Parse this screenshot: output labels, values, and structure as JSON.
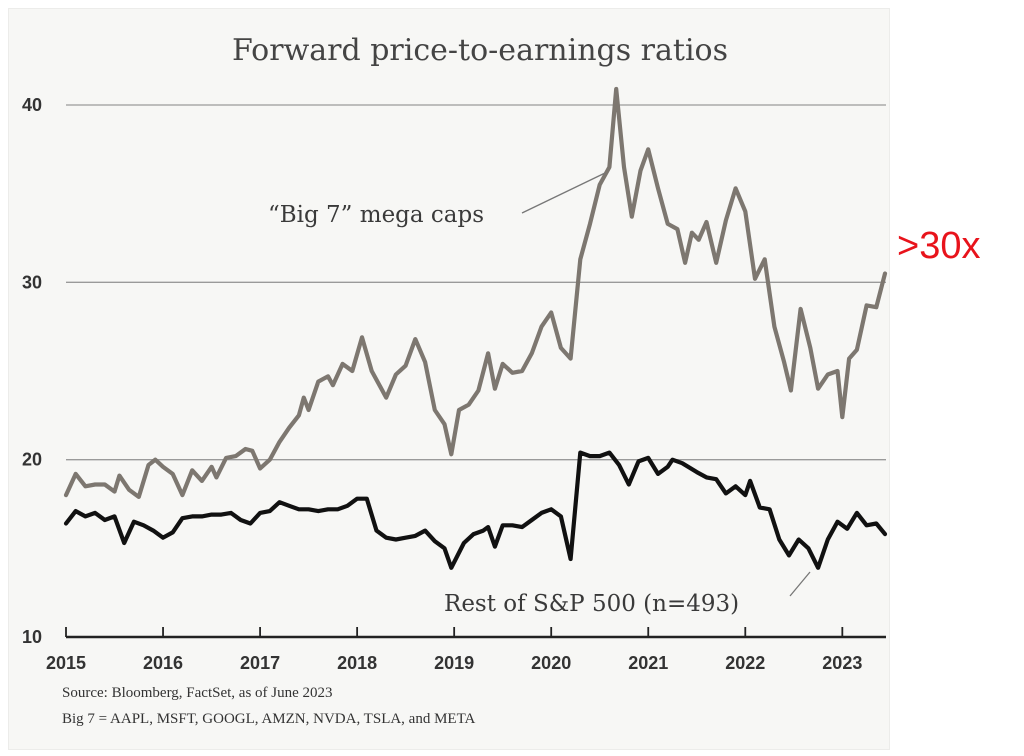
{
  "chart_data": {
    "type": "line",
    "title": "Forward price-to-earnings ratios",
    "xlabel": "",
    "ylabel": "",
    "xlim": [
      2015,
      2023.45
    ],
    "ylim": [
      10,
      40
    ],
    "yticks": [
      10,
      20,
      30,
      40
    ],
    "xticks": [
      "2015",
      "2016",
      "2017",
      "2018",
      "2019",
      "2020",
      "2021",
      "2022",
      "2023"
    ],
    "grid": "horizontal",
    "series": [
      {
        "name": "“Big 7” mega caps",
        "color": "#7d7770",
        "points": [
          [
            2015.0,
            18.0
          ],
          [
            2015.1,
            19.2
          ],
          [
            2015.2,
            18.5
          ],
          [
            2015.3,
            18.6
          ],
          [
            2015.4,
            18.6
          ],
          [
            2015.5,
            18.2
          ],
          [
            2015.55,
            19.1
          ],
          [
            2015.65,
            18.3
          ],
          [
            2015.75,
            17.9
          ],
          [
            2015.85,
            19.7
          ],
          [
            2015.92,
            20.0
          ],
          [
            2016.0,
            19.6
          ],
          [
            2016.1,
            19.2
          ],
          [
            2016.2,
            18.0
          ],
          [
            2016.3,
            19.4
          ],
          [
            2016.4,
            18.8
          ],
          [
            2016.5,
            19.6
          ],
          [
            2016.55,
            19.0
          ],
          [
            2016.65,
            20.1
          ],
          [
            2016.75,
            20.2
          ],
          [
            2016.85,
            20.6
          ],
          [
            2016.92,
            20.5
          ],
          [
            2017.0,
            19.5
          ],
          [
            2017.1,
            20.0
          ],
          [
            2017.2,
            21.0
          ],
          [
            2017.3,
            21.8
          ],
          [
            2017.4,
            22.5
          ],
          [
            2017.45,
            23.5
          ],
          [
            2017.5,
            22.8
          ],
          [
            2017.6,
            24.4
          ],
          [
            2017.7,
            24.7
          ],
          [
            2017.75,
            24.2
          ],
          [
            2017.85,
            25.4
          ],
          [
            2017.95,
            25.0
          ],
          [
            2018.05,
            26.9
          ],
          [
            2018.15,
            25.0
          ],
          [
            2018.3,
            23.5
          ],
          [
            2018.4,
            24.8
          ],
          [
            2018.5,
            25.3
          ],
          [
            2018.6,
            26.8
          ],
          [
            2018.7,
            25.5
          ],
          [
            2018.8,
            22.8
          ],
          [
            2018.9,
            22.0
          ],
          [
            2018.97,
            20.3
          ],
          [
            2019.05,
            22.8
          ],
          [
            2019.15,
            23.1
          ],
          [
            2019.25,
            23.9
          ],
          [
            2019.35,
            26.0
          ],
          [
            2019.42,
            24.0
          ],
          [
            2019.5,
            25.4
          ],
          [
            2019.6,
            24.9
          ],
          [
            2019.7,
            25.0
          ],
          [
            2019.8,
            26.0
          ],
          [
            2019.9,
            27.5
          ],
          [
            2020.0,
            28.3
          ],
          [
            2020.1,
            26.3
          ],
          [
            2020.2,
            25.7
          ],
          [
            2020.3,
            31.3
          ],
          [
            2020.4,
            33.3
          ],
          [
            2020.5,
            35.5
          ],
          [
            2020.6,
            36.5
          ],
          [
            2020.67,
            40.9
          ],
          [
            2020.75,
            36.5
          ],
          [
            2020.83,
            33.7
          ],
          [
            2020.92,
            36.3
          ],
          [
            2021.0,
            37.5
          ],
          [
            2021.1,
            35.3
          ],
          [
            2021.2,
            33.3
          ],
          [
            2021.3,
            33.0
          ],
          [
            2021.38,
            31.1
          ],
          [
            2021.45,
            32.8
          ],
          [
            2021.52,
            32.4
          ],
          [
            2021.6,
            33.4
          ],
          [
            2021.7,
            31.1
          ],
          [
            2021.8,
            33.5
          ],
          [
            2021.9,
            35.3
          ],
          [
            2022.0,
            34.0
          ],
          [
            2022.1,
            30.2
          ],
          [
            2022.2,
            31.3
          ],
          [
            2022.3,
            27.5
          ],
          [
            2022.4,
            25.5
          ],
          [
            2022.47,
            23.9
          ],
          [
            2022.57,
            28.5
          ],
          [
            2022.67,
            26.3
          ],
          [
            2022.75,
            24.0
          ],
          [
            2022.85,
            24.8
          ],
          [
            2022.95,
            25.0
          ],
          [
            2023.0,
            22.4
          ],
          [
            2023.07,
            25.7
          ],
          [
            2023.15,
            26.2
          ],
          [
            2023.25,
            28.7
          ],
          [
            2023.35,
            28.6
          ],
          [
            2023.44,
            30.5
          ]
        ]
      },
      {
        "name": "Rest of S&P 500 (n=493)",
        "color": "#111111",
        "points": [
          [
            2015.0,
            16.4
          ],
          [
            2015.1,
            17.1
          ],
          [
            2015.2,
            16.8
          ],
          [
            2015.3,
            17.0
          ],
          [
            2015.4,
            16.6
          ],
          [
            2015.5,
            16.8
          ],
          [
            2015.6,
            15.3
          ],
          [
            2015.7,
            16.5
          ],
          [
            2015.8,
            16.3
          ],
          [
            2015.9,
            16.0
          ],
          [
            2016.0,
            15.6
          ],
          [
            2016.1,
            15.9
          ],
          [
            2016.2,
            16.7
          ],
          [
            2016.3,
            16.8
          ],
          [
            2016.4,
            16.8
          ],
          [
            2016.5,
            16.9
          ],
          [
            2016.6,
            16.9
          ],
          [
            2016.7,
            17.0
          ],
          [
            2016.8,
            16.6
          ],
          [
            2016.9,
            16.4
          ],
          [
            2017.0,
            17.0
          ],
          [
            2017.1,
            17.1
          ],
          [
            2017.2,
            17.6
          ],
          [
            2017.3,
            17.4
          ],
          [
            2017.4,
            17.2
          ],
          [
            2017.5,
            17.2
          ],
          [
            2017.6,
            17.1
          ],
          [
            2017.7,
            17.2
          ],
          [
            2017.8,
            17.2
          ],
          [
            2017.9,
            17.4
          ],
          [
            2018.0,
            17.8
          ],
          [
            2018.1,
            17.8
          ],
          [
            2018.2,
            16.0
          ],
          [
            2018.3,
            15.6
          ],
          [
            2018.4,
            15.5
          ],
          [
            2018.5,
            15.6
          ],
          [
            2018.6,
            15.7
          ],
          [
            2018.7,
            16.0
          ],
          [
            2018.8,
            15.4
          ],
          [
            2018.9,
            15.0
          ],
          [
            2018.97,
            13.9
          ],
          [
            2019.1,
            15.3
          ],
          [
            2019.2,
            15.8
          ],
          [
            2019.3,
            16.0
          ],
          [
            2019.35,
            16.2
          ],
          [
            2019.42,
            15.1
          ],
          [
            2019.5,
            16.3
          ],
          [
            2019.6,
            16.3
          ],
          [
            2019.7,
            16.2
          ],
          [
            2019.8,
            16.6
          ],
          [
            2019.9,
            17.0
          ],
          [
            2020.0,
            17.2
          ],
          [
            2020.1,
            16.8
          ],
          [
            2020.2,
            14.4
          ],
          [
            2020.3,
            20.4
          ],
          [
            2020.4,
            20.2
          ],
          [
            2020.5,
            20.2
          ],
          [
            2020.6,
            20.4
          ],
          [
            2020.7,
            19.7
          ],
          [
            2020.8,
            18.6
          ],
          [
            2020.9,
            19.9
          ],
          [
            2021.0,
            20.1
          ],
          [
            2021.1,
            19.2
          ],
          [
            2021.2,
            19.6
          ],
          [
            2021.25,
            20.0
          ],
          [
            2021.35,
            19.8
          ],
          [
            2021.5,
            19.3
          ],
          [
            2021.6,
            19.0
          ],
          [
            2021.7,
            18.9
          ],
          [
            2021.8,
            18.1
          ],
          [
            2021.9,
            18.5
          ],
          [
            2022.0,
            18.0
          ],
          [
            2022.05,
            18.8
          ],
          [
            2022.15,
            17.3
          ],
          [
            2022.25,
            17.2
          ],
          [
            2022.35,
            15.5
          ],
          [
            2022.45,
            14.6
          ],
          [
            2022.55,
            15.5
          ],
          [
            2022.65,
            15.0
          ],
          [
            2022.75,
            13.9
          ],
          [
            2022.85,
            15.5
          ],
          [
            2022.95,
            16.5
          ],
          [
            2023.05,
            16.1
          ],
          [
            2023.15,
            17.0
          ],
          [
            2023.25,
            16.3
          ],
          [
            2023.35,
            16.4
          ],
          [
            2023.44,
            15.8
          ]
        ]
      }
    ],
    "annotations": [
      "“Big 7” mega caps",
      "Rest of S&P 500 (n=493)",
      ">30x"
    ],
    "source_lines": [
      "Source: Bloomberg, FactSet, as of June 2023",
      "Big 7 = AAPL,  MSFT,  GOOGL,  AMZN,  NVDA,  TSLA,  and META"
    ]
  },
  "labels": {
    "big7": "“Big 7” mega caps",
    "rest": "Rest of S&P 500 (n=493)",
    "callout": ">30x",
    "source1": "Source: Bloomberg, FactSet, as of June 2023",
    "source2": "Big 7 = AAPL,  MSFT,  GOOGL,  AMZN,  NVDA,  TSLA,  and META"
  }
}
